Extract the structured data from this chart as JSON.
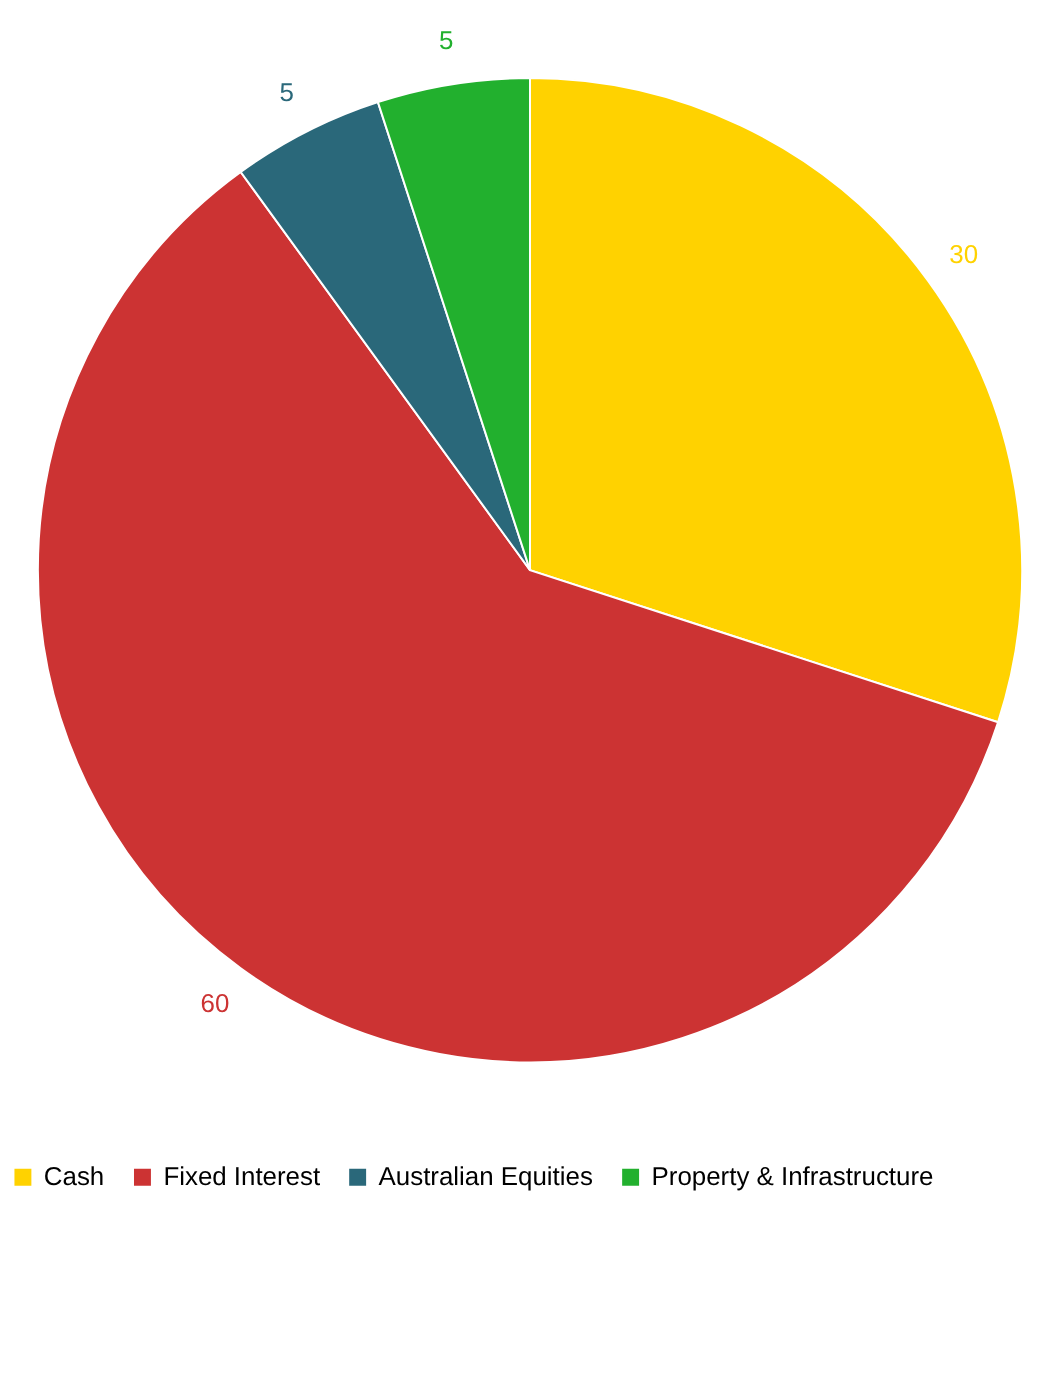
{
  "chart_data": {
    "type": "pie",
    "categories": [
      "Cash",
      "Fixed Interest",
      "Australian Equities",
      "Property & Infrastructure"
    ],
    "values": [
      30,
      60,
      5,
      5
    ],
    "colors": [
      "#ffd200",
      "#cc3333",
      "#2a687a",
      "#22b02e"
    ],
    "data_labels": true,
    "legend": "bottom"
  }
}
